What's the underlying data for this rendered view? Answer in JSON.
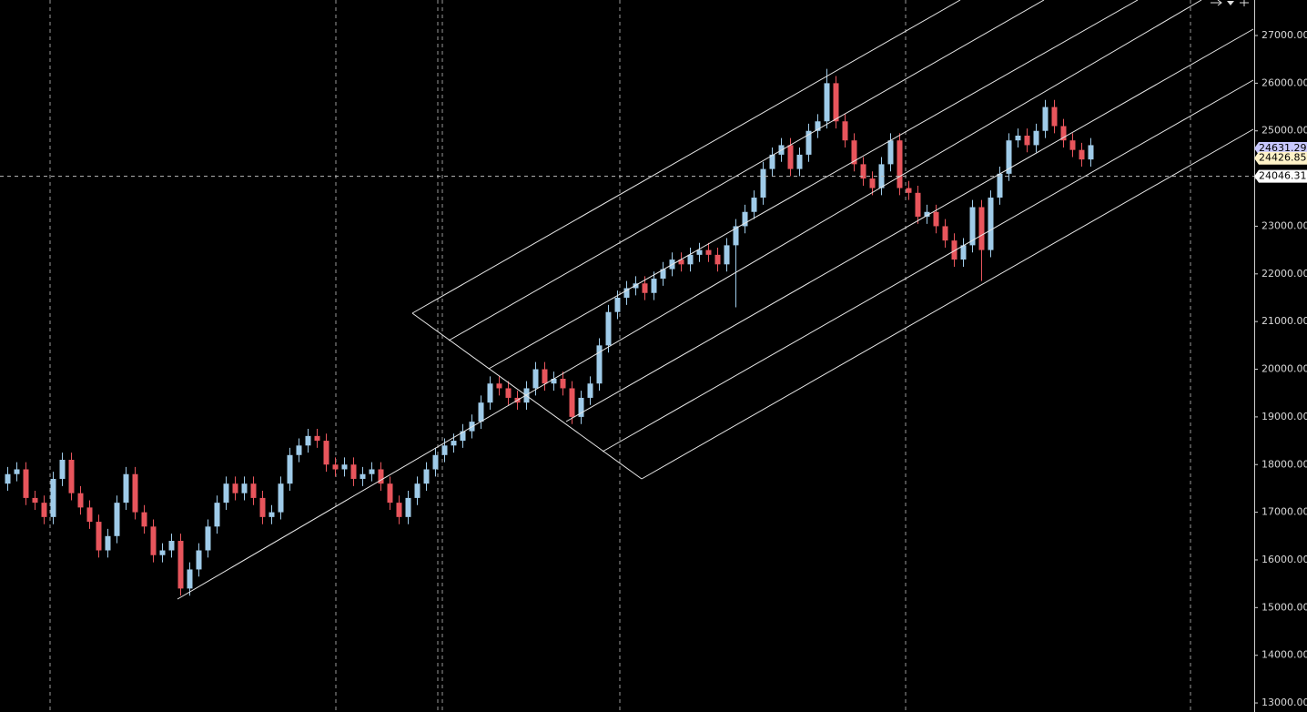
{
  "chart_data": {
    "type": "candlestick",
    "up_color": "#9fcbe9",
    "down_color": "#e8555c",
    "ylim": [
      12810,
      27745
    ],
    "yticks": [
      {
        "value": 13000,
        "label": "13000.00"
      },
      {
        "value": 14000,
        "label": "14000.00"
      },
      {
        "value": 15000,
        "label": "15000.00"
      },
      {
        "value": 16000,
        "label": "16000.00"
      },
      {
        "value": 17000,
        "label": "17000.00"
      },
      {
        "value": 18000,
        "label": "18000.00"
      },
      {
        "value": 19000,
        "label": "19000.00"
      },
      {
        "value": 20000,
        "label": "20000.00"
      },
      {
        "value": 21000,
        "label": "21000.00"
      },
      {
        "value": 22000,
        "label": "22000.00"
      },
      {
        "value": 23000,
        "label": "23000.00"
      },
      {
        "value": 24000,
        "label": "24000.00"
      },
      {
        "value": 25000,
        "label": "25000.00"
      },
      {
        "value": 26000,
        "label": "26000.00"
      },
      {
        "value": 27000,
        "label": "27000.00"
      }
    ],
    "open": [
      17600,
      17800,
      17900,
      17300,
      17200,
      16900,
      17700,
      18100,
      17400,
      17100,
      16800,
      16200,
      16500,
      17200,
      17800,
      17000,
      16700,
      16100,
      16200,
      16400,
      15400,
      15800,
      16200,
      16700,
      17200,
      17600,
      17400,
      17600,
      17300,
      16900,
      17000,
      17600,
      18200,
      18400,
      18600,
      18500,
      18000,
      17900,
      18000,
      17700,
      17800,
      17900,
      17600,
      17200,
      16900,
      17300,
      17600,
      17900,
      18200,
      18400,
      18500,
      18700,
      18900,
      19300,
      19700,
      19600,
      19400,
      19300,
      19600,
      20000,
      19700,
      19800,
      19600,
      19000,
      19400,
      19700,
      20500,
      21200,
      21500,
      21700,
      21800,
      21600,
      21900,
      22100,
      22300,
      22200,
      22400,
      22500,
      22400,
      22200,
      22600,
      23000,
      23300,
      23600,
      24200,
      24500,
      24700,
      24200,
      24500,
      25000,
      25200,
      26000,
      25200,
      24800,
      24300,
      24000,
      23800,
      24300,
      24800,
      23800,
      23700,
      23200,
      23300,
      23000,
      22700,
      22300,
      22600,
      23400,
      22500,
      23600,
      24100,
      24800,
      24900,
      24700,
      25000,
      25500,
      25100,
      24800,
      24600,
      24400
    ],
    "high": [
      17950,
      18050,
      18050,
      17450,
      17350,
      17850,
      18250,
      18250,
      17550,
      17250,
      16950,
      16650,
      17350,
      17950,
      17950,
      17150,
      16850,
      16350,
      16550,
      16550,
      15950,
      16350,
      16850,
      17350,
      17750,
      17750,
      17750,
      17750,
      17450,
      17150,
      17750,
      18350,
      18550,
      18750,
      18750,
      18650,
      18150,
      18150,
      18150,
      17950,
      18050,
      18050,
      17750,
      17350,
      17450,
      17750,
      18050,
      18350,
      18550,
      18650,
      18850,
      19050,
      19450,
      19850,
      19850,
      19750,
      19550,
      19750,
      20150,
      20150,
      19950,
      19950,
      19750,
      19550,
      19850,
      20650,
      21350,
      21650,
      21850,
      21950,
      21950,
      22050,
      22250,
      22450,
      22450,
      22550,
      22650,
      22650,
      22550,
      22750,
      23150,
      23450,
      23750,
      24350,
      24650,
      24850,
      24850,
      24650,
      25150,
      25350,
      26300,
      26150,
      25350,
      24950,
      24450,
      24150,
      24450,
      24950,
      24950,
      23950,
      23850,
      23450,
      23450,
      23150,
      22850,
      22750,
      23550,
      23550,
      23750,
      24250,
      24950,
      25050,
      25050,
      25150,
      25650,
      25650,
      25250,
      24950,
      24750,
      24850
    ],
    "low": [
      17450,
      17650,
      17150,
      17050,
      16750,
      16750,
      17550,
      17250,
      16950,
      16650,
      16050,
      16050,
      16350,
      17050,
      16850,
      16550,
      15950,
      15950,
      16050,
      15250,
      15250,
      15650,
      16050,
      16550,
      17050,
      17250,
      17250,
      17150,
      16750,
      16750,
      16850,
      17450,
      18050,
      18250,
      18350,
      17850,
      17750,
      17750,
      17550,
      17550,
      17650,
      17450,
      17050,
      16750,
      16750,
      17150,
      17450,
      17750,
      18050,
      18250,
      18350,
      18550,
      18750,
      19150,
      19450,
      19250,
      19150,
      19150,
      19450,
      19550,
      19550,
      19450,
      18850,
      18850,
      19250,
      19550,
      20350,
      21050,
      21350,
      21550,
      21450,
      21450,
      21750,
      21950,
      22050,
      22050,
      22250,
      22250,
      22050,
      22050,
      21300,
      22850,
      23150,
      23450,
      24050,
      24350,
      24050,
      24050,
      24350,
      24850,
      25050,
      25050,
      24650,
      24150,
      23850,
      23650,
      23650,
      24150,
      23650,
      23550,
      23050,
      23050,
      22850,
      22550,
      22150,
      22150,
      22450,
      21850,
      22350,
      23450,
      23950,
      24650,
      24550,
      24550,
      24850,
      24950,
      24650,
      24450,
      24250,
      24250
    ],
    "close": [
      17800,
      17900,
      17300,
      17200,
      16900,
      17700,
      18100,
      17400,
      17100,
      16800,
      16200,
      16500,
      17200,
      17800,
      17000,
      16700,
      16100,
      16200,
      16400,
      15400,
      15800,
      16200,
      16700,
      17200,
      17600,
      17400,
      17600,
      17300,
      16900,
      17000,
      17600,
      18200,
      18400,
      18600,
      18500,
      18000,
      17900,
      18000,
      17700,
      17800,
      17900,
      17600,
      17200,
      16900,
      17300,
      17600,
      17900,
      18200,
      18400,
      18500,
      18700,
      18900,
      19300,
      19700,
      19600,
      19400,
      19300,
      19600,
      20000,
      19700,
      19800,
      19600,
      19000,
      19400,
      19700,
      20500,
      21200,
      21500,
      21700,
      21800,
      21600,
      21900,
      22100,
      22300,
      22200,
      22400,
      22500,
      22400,
      22200,
      22600,
      23000,
      23300,
      23600,
      24200,
      24500,
      24700,
      24200,
      24500,
      25000,
      25200,
      26000,
      25200,
      24800,
      24300,
      24000,
      23800,
      24300,
      24800,
      23800,
      23700,
      23200,
      23300,
      23000,
      22700,
      22300,
      22600,
      23400,
      22500,
      23600,
      24100,
      24800,
      24900,
      24700,
      25000,
      25500,
      25100,
      24800,
      24600,
      24400,
      24700
    ],
    "price_markers": [
      {
        "value": 24631.29,
        "label": "24631.29",
        "color": "#c8c8ff"
      },
      {
        "value": 24426.85,
        "label": "24426.85",
        "color": "#fff3c8"
      },
      {
        "value": 24046.31,
        "label": "24046.31",
        "color": "#ffffff"
      }
    ]
  }
}
